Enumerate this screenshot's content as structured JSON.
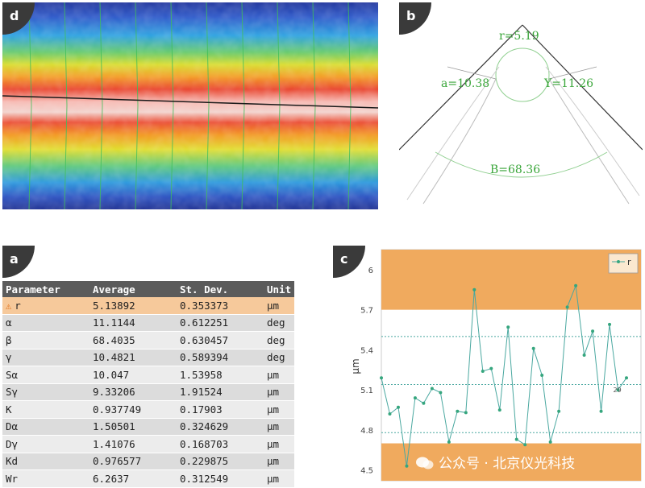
{
  "panels": {
    "d": {
      "label": "d"
    },
    "b": {
      "label": "b",
      "annotations": {
        "r": "r=5.19",
        "a": "a=10.38",
        "y": "Y=11.26",
        "b": "B=68.36"
      },
      "text_color": "#3aa63a"
    },
    "a": {
      "label": "a",
      "table": {
        "headers": [
          "Parameter",
          "Average",
          "St. Dev.",
          "Unit"
        ],
        "rows": [
          {
            "param": "r",
            "avg": "5.13892",
            "sd": "0.353373",
            "unit": "µm",
            "warning": true
          },
          {
            "param": "α",
            "avg": "11.1144",
            "sd": "0.612251",
            "unit": "deg"
          },
          {
            "param": "β",
            "avg": "68.4035",
            "sd": "0.630457",
            "unit": "deg"
          },
          {
            "param": "γ",
            "avg": "10.4821",
            "sd": "0.589394",
            "unit": "deg"
          },
          {
            "param": "Sα",
            "avg": "10.047",
            "sd": "1.53958",
            "unit": "µm"
          },
          {
            "param": "Sγ",
            "avg": "9.33206",
            "sd": "1.91524",
            "unit": "µm"
          },
          {
            "param": "K",
            "avg": "0.937749",
            "sd": "0.17903",
            "unit": "µm"
          },
          {
            "param": "Dα",
            "avg": "1.50501",
            "sd": "0.324629",
            "unit": "µm"
          },
          {
            "param": "Dγ",
            "avg": "1.41076",
            "sd": "0.168703",
            "unit": "µm"
          },
          {
            "param": "Kd",
            "avg": "0.976577",
            "sd": "0.229875",
            "unit": "µm"
          },
          {
            "param": "Wr",
            "avg": "6.2637",
            "sd": "0.312549",
            "unit": "µm"
          }
        ]
      }
    },
    "c": {
      "label": "c"
    }
  },
  "chart_data": {
    "type": "line",
    "ylabel": "µm",
    "ylim": [
      4.42,
      6.15
    ],
    "yticks": [
      "6",
      "5.7",
      "5.4",
      "5.1",
      "4.8",
      "4.5"
    ],
    "legend": "top-right",
    "bands": [
      {
        "from": 5.7,
        "to": 6.15
      },
      {
        "from": 4.42,
        "to": 4.7
      }
    ],
    "reference_lines": [
      5.5,
      5.14,
      4.78
    ],
    "series": [
      {
        "name": "r",
        "values": [
          5.19,
          4.92,
          4.97,
          4.53,
          5.04,
          5.0,
          5.11,
          5.08,
          4.71,
          4.94,
          4.93,
          5.85,
          5.24,
          5.26,
          4.95,
          5.57,
          4.73,
          4.69,
          5.41,
          5.21,
          4.71,
          4.94,
          5.72,
          5.88,
          5.36,
          5.54,
          4.94,
          5.59,
          5.1,
          5.19
        ]
      }
    ],
    "annotation": "29",
    "colors": {
      "band": "#f0aa5e",
      "line": "#4aa8a0",
      "point": "#36a67e",
      "ref": "#4aa8a0"
    }
  },
  "watermark": "公众号 · 北京仪光科技"
}
